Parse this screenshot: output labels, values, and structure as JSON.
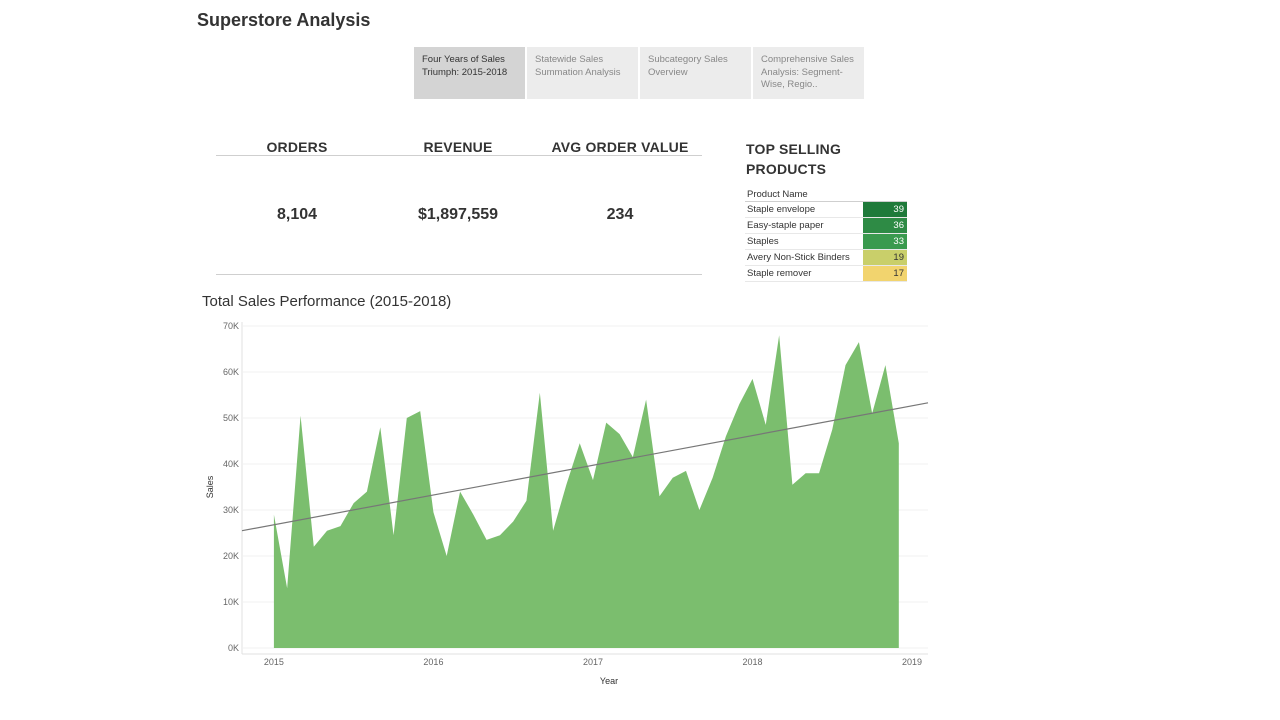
{
  "app": {
    "title": "Superstore Analysis"
  },
  "tabs": [
    {
      "label": "Four Years of Sales Triumph: 2015-2018",
      "active": true
    },
    {
      "label": "Statewide Sales Summation Analysis",
      "active": false
    },
    {
      "label": "Subcategory Sales Overview",
      "active": false
    },
    {
      "label": "Comprehensive Sales Analysis: Segment-Wise, Regio..",
      "active": false
    }
  ],
  "kpis": {
    "orders": {
      "label": "ORDERS",
      "value": "8,104"
    },
    "revenue": {
      "label": "REVENUE",
      "value": "$1,897,559"
    },
    "aov": {
      "label": "AVG ORDER VALUE",
      "value": "234"
    }
  },
  "top_products": {
    "title": "TOP SELLING PRODUCTS",
    "header": "Product Name",
    "rows": [
      {
        "name": "Staple envelope",
        "count": 39,
        "color": "#1f7a3a"
      },
      {
        "name": "Easy-staple paper",
        "count": 36,
        "color": "#2e8b45"
      },
      {
        "name": "Staples",
        "count": 33,
        "color": "#3a9a4e"
      },
      {
        "name": "Avery Non-Stick Binders",
        "count": 19,
        "color": "#c9cf6a"
      },
      {
        "name": "Staple remover",
        "count": 17,
        "color": "#f2d46e"
      }
    ]
  },
  "chart_data": {
    "type": "area",
    "title": "Total Sales Performance (2015-2018)",
    "xlabel": "Year",
    "ylabel": "Sales",
    "xlim": [
      2014.8,
      2019.1
    ],
    "ylim": [
      0,
      70000
    ],
    "x_ticks": [
      "2015",
      "2016",
      "2017",
      "2018",
      "2019"
    ],
    "y_ticks": [
      "0K",
      "10K",
      "20K",
      "30K",
      "40K",
      "50K",
      "60K",
      "70K"
    ],
    "color": "#7bbe6e",
    "trend_color": "#777777",
    "trend": {
      "x": [
        2014.8,
        2019.1
      ],
      "y": [
        25500,
        53300
      ]
    },
    "series": [
      {
        "x": [
          2015.0,
          2015.083,
          2015.167,
          2015.25,
          2015.333,
          2015.417,
          2015.5,
          2015.583,
          2015.667,
          2015.75,
          2015.833,
          2015.917,
          2016.0,
          2016.083,
          2016.167,
          2016.25,
          2016.333,
          2016.417,
          2016.5,
          2016.583,
          2016.667,
          2016.75,
          2016.833,
          2016.917,
          2017.0,
          2017.083,
          2017.167,
          2017.25,
          2017.333,
          2017.417,
          2017.5,
          2017.583,
          2017.667,
          2017.75,
          2017.833,
          2017.917,
          2018.0,
          2018.083,
          2018.167,
          2018.25,
          2018.333,
          2018.417,
          2018.5,
          2018.583,
          2018.667,
          2018.75,
          2018.833,
          2018.917
        ],
        "values": [
          29000,
          13000,
          50500,
          22000,
          25500,
          26500,
          31500,
          34000,
          48000,
          24500,
          50000,
          51500,
          29500,
          20000,
          34000,
          29000,
          23500,
          24500,
          27500,
          32000,
          55500,
          25500,
          35500,
          44500,
          36500,
          49000,
          46500,
          41500,
          54000,
          33000,
          37000,
          38500,
          30000,
          37000,
          46000,
          53000,
          58500,
          48500,
          68000,
          35500,
          38000,
          38000,
          47500,
          61500,
          66500,
          51000,
          61500,
          44500
        ]
      }
    ]
  }
}
